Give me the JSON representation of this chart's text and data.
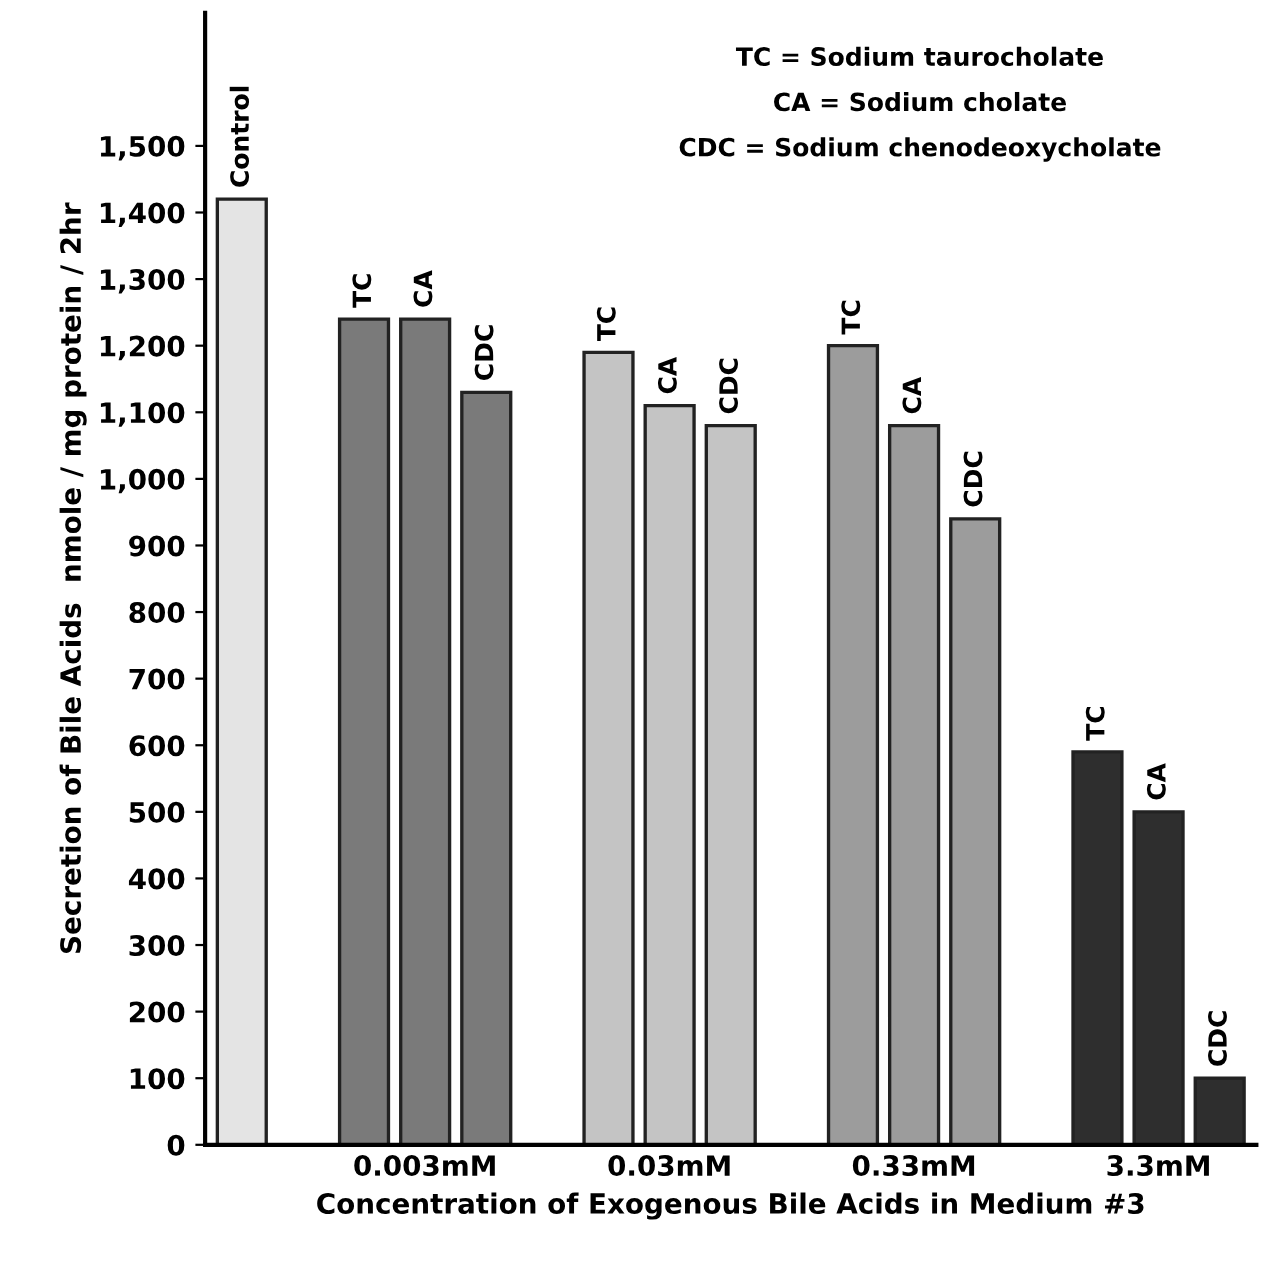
{
  "chart_data": {
    "type": "bar",
    "xlabel": "Concentration of Exogenous Bile Acids in Medium #3",
    "ylabel": "Secretion of Bile Acids  nmole / mg protein / 2hr",
    "categories": [
      null,
      null,
      null,
      "0.003mM",
      null,
      null,
      null,
      "0.03mM",
      null,
      null,
      null,
      "0.33mM",
      null,
      null,
      null,
      "3.3mM",
      null
    ],
    "values": [
      1420,
      null,
      1240,
      1240,
      1130,
      null,
      1190,
      1110,
      1080,
      null,
      1200,
      1080,
      940,
      null,
      590,
      500,
      100
    ],
    "colors": [
      "#e4e4e4",
      null,
      "#7a7a7a",
      "#7a7a7a",
      "#7a7a7a",
      null,
      "#c4c4c4",
      "#c4c4c4",
      "#c4c4c4",
      null,
      "#9c9c9c",
      "#9c9c9c",
      "#9c9c9c",
      null,
      "#2e2e2e",
      "#2e2e2e",
      "#2e2e2e"
    ],
    "ylim": [
      0,
      1700
    ],
    "yticks": [
      0,
      100,
      200,
      300,
      400,
      500,
      600,
      700,
      800,
      900,
      {
        "value": 1000,
        "label": "1,000"
      },
      {
        "value": 1100,
        "label": "1,100"
      },
      {
        "value": 1200,
        "label": "1,200"
      },
      {
        "value": 1300,
        "label": "1,300"
      },
      {
        "value": 1400,
        "label": "1,400"
      },
      {
        "value": 1500,
        "label": "1,500"
      }
    ],
    "annotations": [
      {
        "text": "Control",
        "y": 1420
      },
      {
        "text": "TC",
        "y": 1240
      },
      {
        "text": "CA",
        "y": 1240
      },
      {
        "text": "CDC",
        "y": 1130
      },
      {
        "text": "TC",
        "y": 1190
      },
      {
        "text": "CA",
        "y": 1110
      },
      {
        "text": "CDC",
        "y": 1080
      },
      {
        "text": "TC",
        "y": 1200
      },
      {
        "text": "CA",
        "y": 1080
      },
      {
        "text": "CDC",
        "y": 940
      },
      {
        "text": "TC",
        "y": 590
      },
      {
        "text": "CA",
        "y": 500
      },
      {
        "text": "CDC",
        "y": 100
      },
      "TC = Sodium taurocholate",
      "CA = Sodium cholate",
      "CDC = Sodium chenodeoxycholate"
    ],
    "grid": false,
    "legend": false
  }
}
